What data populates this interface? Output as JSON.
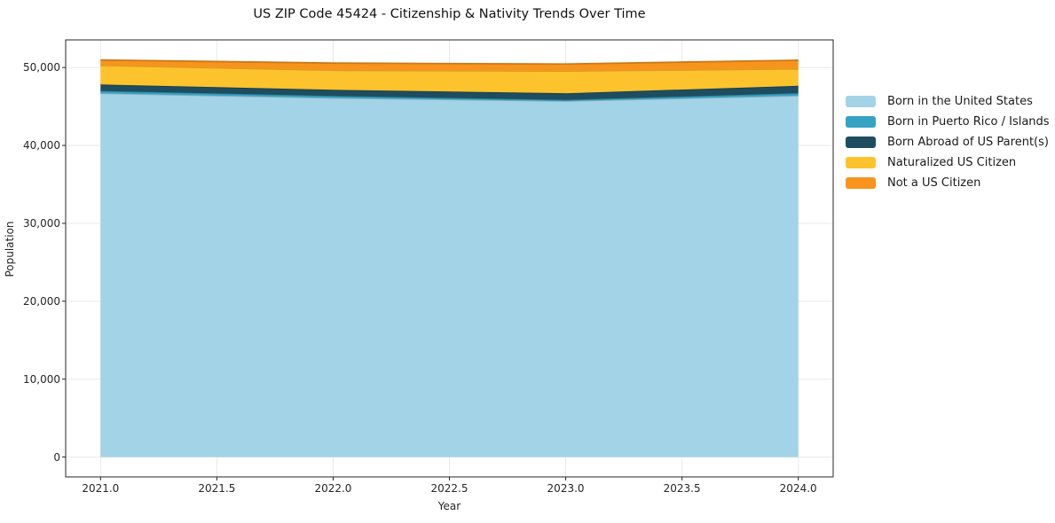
{
  "title": "US ZIP Code 45424 - Citizenship & Nativity Trends Over Time",
  "chart_data": {
    "type": "area",
    "stacked": true,
    "title": "US ZIP Code 45424 - Citizenship & Nativity Trends Over Time",
    "xlabel": "Year",
    "ylabel": "Population",
    "x": [
      2021,
      2022,
      2023,
      2024
    ],
    "series": [
      {
        "name": "Born in the United States",
        "color": "#a3d3e6",
        "values": [
          46700,
          46100,
          45700,
          46400
        ]
      },
      {
        "name": "Born in Puerto Rico / Islands",
        "color": "#36a3c3",
        "values": [
          300,
          250,
          150,
          310
        ]
      },
      {
        "name": "Born Abroad of US Parent(s)",
        "color": "#1e4d5f",
        "values": [
          830,
          800,
          850,
          950
        ]
      },
      {
        "name": "Naturalized US Citizen",
        "color": "#fdc32d",
        "values": [
          2450,
          2500,
          2850,
          2170
        ]
      },
      {
        "name": "Not a US Citizen",
        "color": "#f7941d",
        "values": [
          690,
          920,
          900,
          1110
        ]
      }
    ],
    "xticks": [
      2021.0,
      2021.5,
      2022.0,
      2022.5,
      2023.0,
      2023.5,
      2024.0
    ],
    "xtick_labels": [
      "2021.0",
      "2021.5",
      "2022.0",
      "2022.5",
      "2023.0",
      "2023.5",
      "2024.0"
    ],
    "yticks": [
      0,
      10000,
      20000,
      30000,
      40000,
      50000
    ],
    "ytick_labels": [
      "0",
      "10,000",
      "20,000",
      "30,000",
      "40,000",
      "50,000"
    ],
    "xlim": [
      2020.85,
      2024.15
    ],
    "ylim": [
      -2550,
      53550
    ],
    "grid": true,
    "grid_color": "#e9e9e9",
    "spine_color": "#262626",
    "legend_position": "right"
  }
}
